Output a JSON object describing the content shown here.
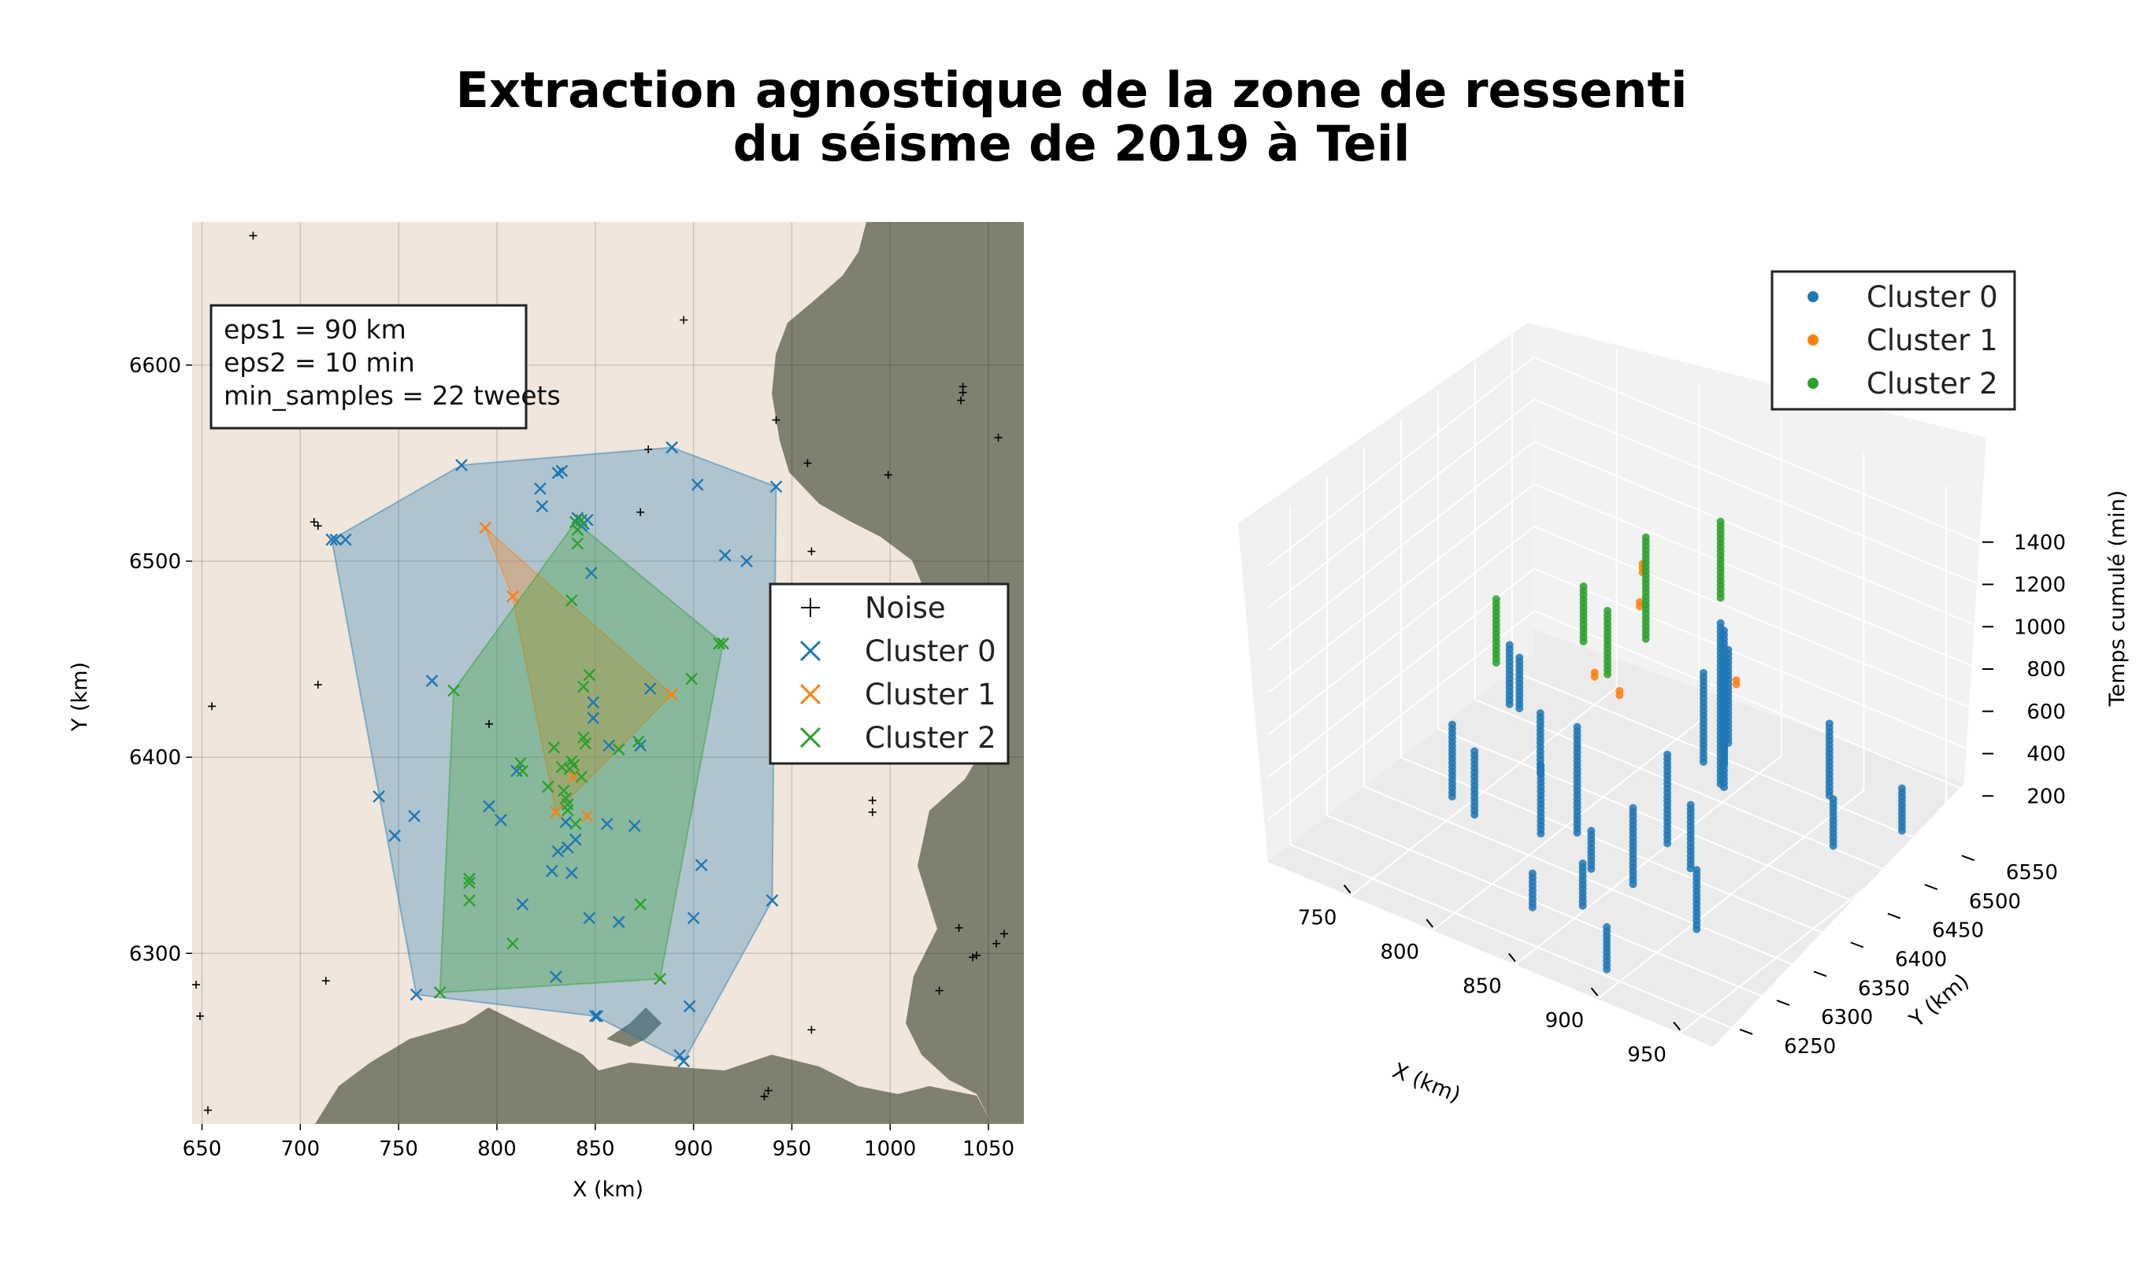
{
  "title_lines": [
    "Extraction agnostique de la zone de ressenti",
    "du séisme de 2019 à Teil"
  ],
  "colors": {
    "noise": "#000000",
    "cluster0": "#1f77b4",
    "cluster1": "#ff7f0e",
    "cluster2": "#2ca02c",
    "land": "#f0e6dc",
    "sea": "#808070"
  },
  "params_box": {
    "line1": "eps1 = 90 km",
    "line2": "eps2 = 10 min",
    "line3": "min_samples = 22 tweets"
  },
  "chart_data": [
    {
      "type": "scatter",
      "xlabel": "X (km)",
      "ylabel": "Y (km)",
      "xlim": [
        645,
        1068
      ],
      "ylim": [
        6213,
        6673
      ],
      "xticks": [
        650,
        700,
        750,
        800,
        850,
        900,
        950,
        1000,
        1050
      ],
      "yticks": [
        6300,
        6400,
        6500,
        6600
      ],
      "grid": true,
      "legend_position": "center-right",
      "legend": [
        "Noise",
        "Cluster 0",
        "Cluster 1",
        "Cluster 2"
      ],
      "series": [
        {
          "name": "Noise",
          "marker": "+",
          "points": [
            [
              647,
              6284
            ],
            [
              649,
              6268
            ],
            [
              653,
              6220
            ],
            [
              655,
              6426
            ],
            [
              676,
              6666
            ],
            [
              707,
              6520
            ],
            [
              709,
              6437
            ],
            [
              709,
              6518
            ],
            [
              713,
              6286
            ],
            [
              796,
              6417
            ],
            [
              873,
              6525
            ],
            [
              877,
              6557
            ],
            [
              895,
              6623
            ],
            [
              936,
              6227
            ],
            [
              938,
              6230
            ],
            [
              942,
              6572
            ],
            [
              958,
              6550
            ],
            [
              960,
              6505
            ],
            [
              960,
              6261
            ],
            [
              991,
              6378
            ],
            [
              991,
              6372
            ],
            [
              999,
              6544
            ],
            [
              1025,
              6281
            ],
            [
              1035,
              6313
            ],
            [
              1036,
              6582
            ],
            [
              1037,
              6586
            ],
            [
              1037,
              6589
            ],
            [
              1042,
              6298
            ],
            [
              1044,
              6299
            ],
            [
              1054,
              6305
            ],
            [
              1055,
              6563
            ],
            [
              1058,
              6310
            ]
          ]
        },
        {
          "name": "Cluster 0",
          "marker": "x",
          "points": [
            [
              716,
              6511
            ],
            [
              718,
              6511
            ],
            [
              723,
              6511
            ],
            [
              740,
              6380
            ],
            [
              748,
              6360
            ],
            [
              758,
              6370
            ],
            [
              759,
              6279
            ],
            [
              767,
              6439
            ],
            [
              782,
              6549
            ],
            [
              796,
              6375
            ],
            [
              802,
              6368
            ],
            [
              810,
              6393
            ],
            [
              813,
              6325
            ],
            [
              822,
              6537
            ],
            [
              823,
              6528
            ],
            [
              828,
              6342
            ],
            [
              830,
              6288
            ],
            [
              831,
              6545
            ],
            [
              831,
              6352
            ],
            [
              833,
              6546
            ],
            [
              835,
              6367
            ],
            [
              836,
              6354
            ],
            [
              838,
              6341
            ],
            [
              840,
              6358
            ],
            [
              840,
              6520
            ],
            [
              841,
              6522
            ],
            [
              843,
              6518
            ],
            [
              844,
              6519
            ],
            [
              846,
              6521
            ],
            [
              847,
              6318
            ],
            [
              848,
              6494
            ],
            [
              849,
              6428
            ],
            [
              849,
              6420
            ],
            [
              850,
              6268
            ],
            [
              851,
              6268
            ],
            [
              856,
              6366
            ],
            [
              857,
              6406
            ],
            [
              862,
              6316
            ],
            [
              870,
              6365
            ],
            [
              873,
              6406
            ],
            [
              878,
              6435
            ],
            [
              889,
              6558
            ],
            [
              893,
              6248
            ],
            [
              895,
              6245
            ],
            [
              898,
              6273
            ],
            [
              900,
              6318
            ],
            [
              902,
              6539
            ],
            [
              904,
              6345
            ],
            [
              916,
              6503
            ],
            [
              927,
              6500
            ],
            [
              940,
              6327
            ],
            [
              942,
              6538
            ]
          ]
        },
        {
          "name": "Cluster 1",
          "marker": "x",
          "points": [
            [
              794,
              6517
            ],
            [
              808,
              6482
            ],
            [
              830,
              6372
            ],
            [
              839,
              6390
            ],
            [
              846,
              6370
            ],
            [
              889,
              6432
            ]
          ]
        },
        {
          "name": "Cluster 2",
          "marker": "x",
          "points": [
            [
              771,
              6280
            ],
            [
              778,
              6434
            ],
            [
              786,
              6338
            ],
            [
              786,
              6336
            ],
            [
              786,
              6327
            ],
            [
              808,
              6305
            ],
            [
              812,
              6397
            ],
            [
              813,
              6393
            ],
            [
              826,
              6385
            ],
            [
              829,
              6405
            ],
            [
              833,
              6395
            ],
            [
              834,
              6383
            ],
            [
              835,
              6379
            ],
            [
              836,
              6376
            ],
            [
              836,
              6373
            ],
            [
              837,
              6394
            ],
            [
              838,
              6480
            ],
            [
              838,
              6398
            ],
            [
              839,
              6396
            ],
            [
              840,
              6366
            ],
            [
              840,
              6520
            ],
            [
              841,
              6516
            ],
            [
              841,
              6509
            ],
            [
              843,
              6521
            ],
            [
              843,
              6390
            ],
            [
              844,
              6410
            ],
            [
              844,
              6436
            ],
            [
              845,
              6407
            ],
            [
              847,
              6442
            ],
            [
              862,
              6404
            ],
            [
              872,
              6408
            ],
            [
              873,
              6325
            ],
            [
              883,
              6287
            ],
            [
              899,
              6440
            ],
            [
              913,
              6458
            ],
            [
              915,
              6458
            ]
          ]
        }
      ],
      "hulls": [
        {
          "name": "Cluster 0",
          "points": [
            [
              716,
              6511
            ],
            [
              782,
              6549
            ],
            [
              889,
              6558
            ],
            [
              942,
              6538
            ],
            [
              940,
              6327
            ],
            [
              895,
              6245
            ],
            [
              850,
              6268
            ],
            [
              759,
              6279
            ]
          ]
        },
        {
          "name": "Cluster 1",
          "points": [
            [
              794,
              6517
            ],
            [
              889,
              6432
            ],
            [
              830,
              6372
            ],
            [
              808,
              6482
            ]
          ]
        },
        {
          "name": "Cluster 2",
          "points": [
            [
              840,
              6520
            ],
            [
              915,
              6458
            ],
            [
              883,
              6287
            ],
            [
              771,
              6280
            ],
            [
              778,
              6434
            ]
          ]
        }
      ]
    },
    {
      "type": "scatter3d",
      "xlabel": "X (km)",
      "ylabel": "Y (km)",
      "zlabel": "Temps cumulé (min)",
      "xticks": [
        750,
        800,
        850,
        900,
        950
      ],
      "yticks": [
        6250,
        6300,
        6350,
        6400,
        6450,
        6500,
        6550
      ],
      "zticks": [
        200,
        400,
        600,
        800,
        1000,
        1200,
        1400
      ],
      "legend_position": "top-right",
      "legend": [
        "Cluster 0",
        "Cluster 1",
        "Cluster 2"
      ],
      "series": [
        {
          "name": "Cluster 0",
          "columns": [
            [
              716,
              6511,
              0,
              280
            ],
            [
              722,
              6511,
              0,
              250
            ],
            [
              740,
              6380,
              0,
              350
            ],
            [
              758,
              6370,
              0,
              300
            ],
            [
              767,
              6439,
              40,
              320
            ],
            [
              796,
              6375,
              20,
              340
            ],
            [
              810,
              6393,
              20,
              520
            ],
            [
              822,
              6537,
              0,
              420
            ],
            [
              830,
              6288,
              20,
              190
            ],
            [
              831,
              6545,
              0,
              460
            ],
            [
              833,
              6546,
              100,
              540
            ],
            [
              836,
              6354,
              40,
              220
            ],
            [
              840,
              6520,
              0,
              760
            ],
            [
              843,
              6518,
              0,
              740
            ],
            [
              847,
              6318,
              0,
              200
            ],
            [
              849,
              6428,
              0,
              420
            ],
            [
              856,
              6366,
              0,
              360
            ],
            [
              873,
              6406,
              20,
              320
            ],
            [
              889,
              6558,
              0,
              350
            ],
            [
              893,
              6248,
              40,
              240
            ],
            [
              904,
              6345,
              0,
              280
            ],
            [
              916,
              6503,
              0,
              220
            ],
            [
              942,
              6538,
              60,
              260
            ]
          ]
        },
        {
          "name": "Cluster 1",
          "columns": [
            [
              794,
              6517,
              860,
              900
            ],
            [
              808,
              6482,
              840,
              870
            ],
            [
              830,
              6372,
              880,
              900
            ],
            [
              846,
              6370,
              850,
              880
            ],
            [
              889,
              6432,
              870,
              900
            ]
          ]
        },
        {
          "name": "Cluster 2",
          "columns": [
            [
              786,
              6337,
              900,
              1200
            ],
            [
              812,
              6397,
              920,
              1180
            ],
            [
              836,
              6376,
              900,
              1200
            ],
            [
              840,
              6520,
              880,
              1240
            ],
            [
              844,
              6410,
              1000,
              1480
            ]
          ]
        }
      ]
    }
  ]
}
